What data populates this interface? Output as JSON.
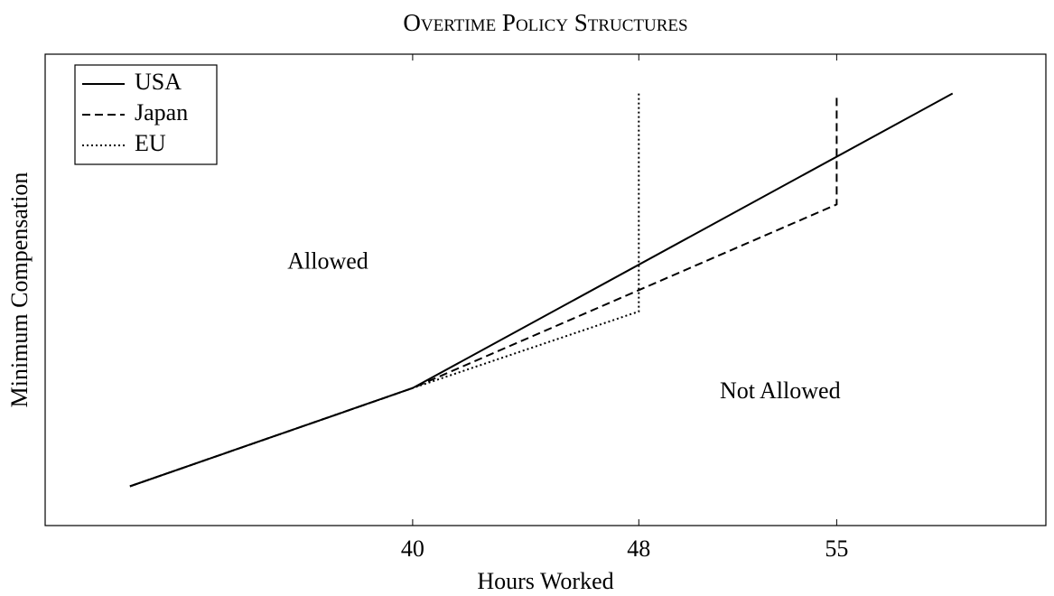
{
  "chart_data": {
    "type": "line",
    "title": "Overtime Policy Structures",
    "xlabel": "Hours Worked",
    "ylabel": "Minimum Compensation",
    "xlim": [
      27,
      62.4
    ],
    "ylim": [
      26,
      74
    ],
    "xticks": [
      40,
      48,
      55
    ],
    "yticks": [],
    "legend": "upper left",
    "series": [
      {
        "name": "USA",
        "color": "#000000",
        "dash": "solid",
        "x": [
          30,
          40,
          59.1
        ],
        "values": [
          30,
          40,
          70
        ]
      },
      {
        "name": "Japan",
        "color": "#000000",
        "dash": "dashed",
        "x": [
          30,
          40,
          55,
          55
        ],
        "values": [
          30,
          40,
          58.7,
          70
        ]
      },
      {
        "name": "EU",
        "color": "#000000",
        "dash": "dotted",
        "x": [
          30,
          40,
          48,
          48
        ],
        "values": [
          30,
          40,
          47.8,
          70
        ]
      }
    ],
    "annotations": [
      {
        "text": "Allowed",
        "x": 37,
        "y": 52.7
      },
      {
        "text": "Not Allowed",
        "x": 53,
        "y": 39.5
      }
    ]
  }
}
